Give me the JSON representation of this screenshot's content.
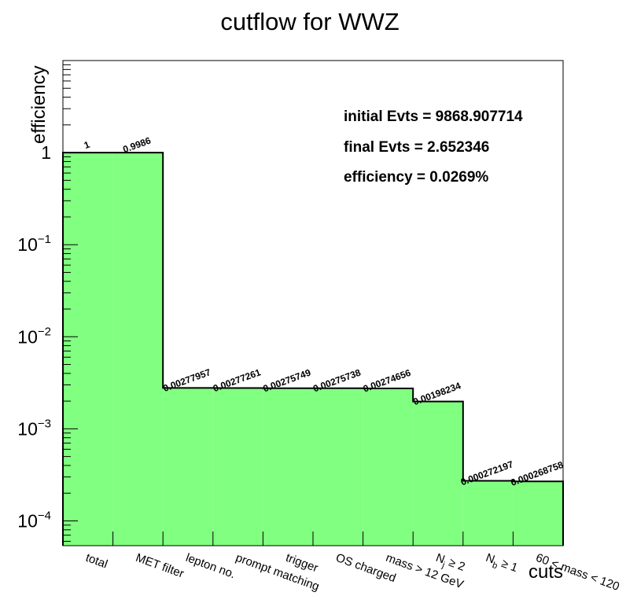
{
  "chart_data": {
    "type": "bar",
    "title": "cutflow for WWZ",
    "xlabel": "cuts",
    "ylabel": "efficiency",
    "yscale": "log",
    "ylim": [
      5.38e-05,
      10
    ],
    "grid": false,
    "bar_color": "#80ff80",
    "categories": [
      "total",
      "MET filter",
      "lepton no.",
      "prompt matching",
      "trigger",
      "OS charged",
      "mass > 12 GeV",
      "N_j ≥ 2",
      "N_b ≥ 1",
      "60 < mass < 120"
    ],
    "values": [
      1,
      0.9986,
      0.00277957,
      0.00277261,
      0.00275749,
      0.00275738,
      0.00274656,
      0.00198234,
      0.000272197,
      0.000268758
    ],
    "value_labels": [
      "1",
      "0.9986",
      "0.00277957",
      "0.00277261",
      "0.00275749",
      "0.00275738",
      "0.00274656",
      "0.00198234",
      "0.000272197",
      "0.000268758"
    ],
    "y_ticks": [
      {
        "base": "1",
        "exp": ""
      },
      {
        "base": "10",
        "exp": "−1"
      },
      {
        "base": "10",
        "exp": "−2"
      },
      {
        "base": "10",
        "exp": "−3"
      },
      {
        "base": "10",
        "exp": "−4"
      }
    ],
    "annotations": [
      "initial Evts = 9868.907714",
      "final Evts = 2.652346",
      "efficiency = 0.0269%"
    ]
  }
}
